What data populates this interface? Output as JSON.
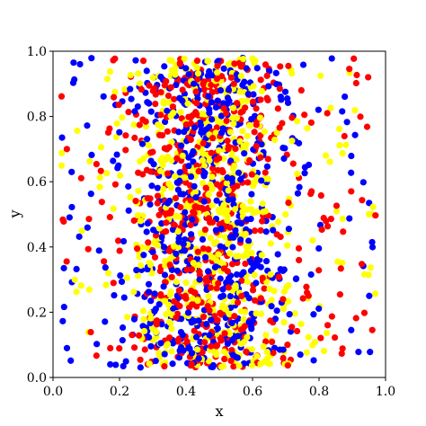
{
  "chart_data": {
    "type": "scatter",
    "title": "",
    "xlabel": "x",
    "ylabel": "y",
    "xlim": [
      0.0,
      1.0
    ],
    "ylim": [
      0.0,
      1.0
    ],
    "x_ticks": [
      "0.0",
      "0.2",
      "0.4",
      "0.6",
      "0.8",
      "1.0"
    ],
    "y_ticks": [
      "0.0",
      "0.2",
      "0.4",
      "0.6",
      "0.8",
      "1.0"
    ],
    "grid": false,
    "legend": "none",
    "point_count_per_series": 600,
    "point_distribution": "dense near x=0.3–0.6, sparse toward x edges",
    "series": [
      {
        "color": "#0000ff",
        "seed": 11
      },
      {
        "color": "#ff0000",
        "seed": 23
      },
      {
        "color": "#ffff00",
        "seed": 37
      }
    ]
  }
}
